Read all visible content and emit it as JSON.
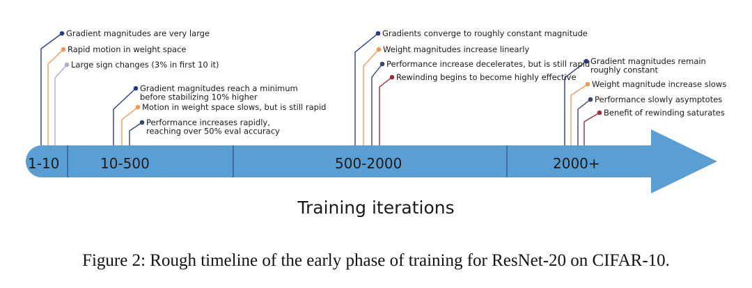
{
  "colors": {
    "arrow": "#5a9fd4",
    "divider": "#2f4d9e",
    "navy": "#283a8c",
    "orange": "#f29a52",
    "lavender": "#b7a6dc",
    "slate": "#35476a",
    "maroon": "#9c2d3d"
  },
  "axis_label": "Training iterations",
  "caption": "Figure 2: Rough timeline of the early phase of training for ResNet-20 on CIFAR-10.",
  "segments": [
    {
      "label": "1-10",
      "annotations": [
        {
          "lines": [
            "Gradient magnitudes are very large"
          ],
          "color": "navy"
        },
        {
          "lines": [
            "Rapid motion in weight space"
          ],
          "color": "orange"
        },
        {
          "lines": [
            "Large sign changes (3% in first 10 it)"
          ],
          "color": "lavender"
        }
      ]
    },
    {
      "label": "10-500",
      "annotations": [
        {
          "lines": [
            "Gradient magnitudes reach a minimum",
            "before stabilizing 10% higher"
          ],
          "color": "navy"
        },
        {
          "lines": [
            "Motion in weight space slows, but is still rapid"
          ],
          "color": "orange"
        },
        {
          "lines": [
            "Performance increases rapidly,",
            "reaching over 50% eval accuracy"
          ],
          "color": "slate"
        }
      ]
    },
    {
      "label": "500-2000",
      "annotations": [
        {
          "lines": [
            "Gradients converge to roughly constant magnitude"
          ],
          "color": "navy"
        },
        {
          "lines": [
            "Weight magnitudes increase linearly"
          ],
          "color": "orange"
        },
        {
          "lines": [
            "Performance increase decelerates, but is still rapid"
          ],
          "color": "slate"
        },
        {
          "lines": [
            "Rewinding begins to become highly effective"
          ],
          "color": "maroon"
        }
      ]
    },
    {
      "label": "2000+",
      "annotations": [
        {
          "lines": [
            "Gradient magnitudes remain",
            "roughly constant"
          ],
          "color": "navy"
        },
        {
          "lines": [
            "Weight magnitude increase slows"
          ],
          "color": "orange"
        },
        {
          "lines": [
            "Performance slowly asymptotes"
          ],
          "color": "slate"
        },
        {
          "lines": [
            "Benefit of rewinding saturates"
          ],
          "color": "maroon"
        }
      ]
    }
  ]
}
